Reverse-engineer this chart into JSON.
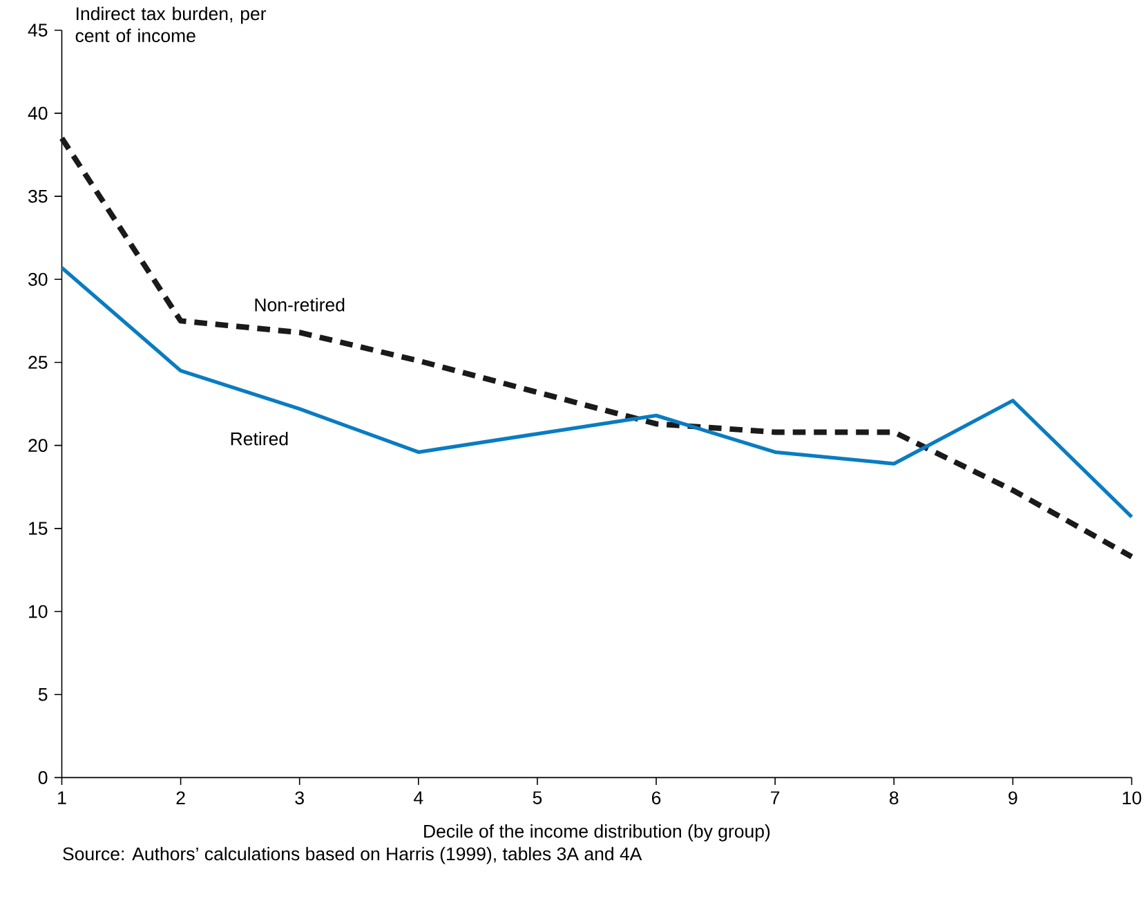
{
  "chart_data": {
    "type": "line",
    "ylabel": "Indirect tax burden, per cent of income",
    "xlabel": "Decile of the income distribution (by group)",
    "annotations": [
      "Source: Authors’ calculations based on Harris (1999), tables 3A and 4A"
    ],
    "x": [
      1,
      2,
      3,
      4,
      5,
      6,
      7,
      8,
      9,
      10
    ],
    "xlim": [
      1,
      10
    ],
    "xticks": [
      1,
      2,
      3,
      4,
      5,
      6,
      7,
      8,
      9,
      10
    ],
    "ylim": [
      0,
      45
    ],
    "yticks": [
      0,
      5,
      10,
      15,
      20,
      25,
      30,
      35,
      40,
      45
    ],
    "grid": false,
    "legend": false,
    "marker": "none",
    "series": [
      {
        "name": "Non-retired",
        "color": "#1a1a1a",
        "line_style": "dashed",
        "values": [
          38.5,
          27.5,
          26.8,
          25.1,
          23.2,
          21.3,
          20.8,
          20.8,
          17.3,
          13.3
        ]
      },
      {
        "name": "Retired",
        "color": "#0a7cc1",
        "line_style": "solid",
        "values": [
          30.7,
          24.5,
          22.2,
          19.6,
          20.7,
          21.8,
          19.6,
          18.9,
          22.7,
          15.7
        ]
      }
    ]
  }
}
